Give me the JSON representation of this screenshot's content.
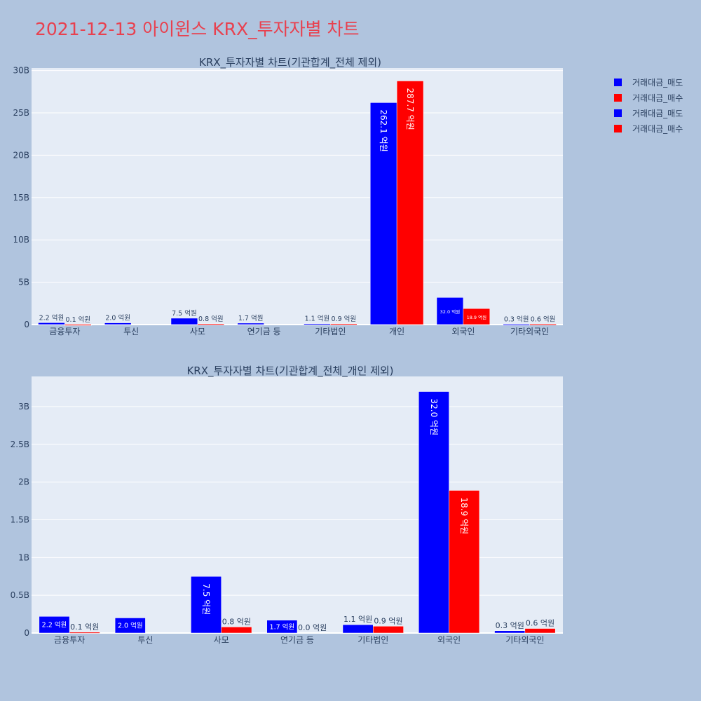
{
  "page_title": "2021-12-13 아이윈스 KRX_투자자별 차트",
  "colors": {
    "sell": "#0000ff",
    "buy": "#ff0000",
    "plot_bg": "#e5ecf6",
    "page_bg": "#b0c4de",
    "title": "#e8414f",
    "text": "#2a3f5f"
  },
  "legend": [
    {
      "label": "거래대금_매도",
      "color": "#0000ff"
    },
    {
      "label": "거래대금_매수",
      "color": "#ff0000"
    },
    {
      "label": "거래대금_매도",
      "color": "#0000ff"
    },
    {
      "label": "거래대금_매수",
      "color": "#ff0000"
    }
  ],
  "chart_data": [
    {
      "type": "bar",
      "title": "KRX_투자자별 차트(기관합계_전체 제외)",
      "categories": [
        "금융투자",
        "투신",
        "사모",
        "연기금 등",
        "기타법인",
        "개인",
        "외국인",
        "기타외국인"
      ],
      "series": [
        {
          "name": "거래대금_매도",
          "values": [
            220000000,
            200000000,
            750000000,
            170000000,
            110000000,
            26210000000,
            3200000000,
            30000000
          ],
          "labels": [
            "2.2 억원",
            "2.0 억원",
            "7.5 억원",
            "1.7 억원",
            "1.1 억원",
            "262.1 억원",
            "32.0 억원",
            "0.3 억원"
          ]
        },
        {
          "name": "거래대금_매수",
          "values": [
            10000000,
            0,
            80000000,
            0,
            90000000,
            28770000000,
            1890000000,
            60000000
          ],
          "labels": [
            "0.1 억원",
            "",
            "0.8 억원",
            "",
            "0.9 억원",
            "287.7 억원",
            "18.9 억원",
            "0.6 억원"
          ]
        }
      ],
      "yticks": [
        "0",
        "5B",
        "10B",
        "15B",
        "20B",
        "25B",
        "30B"
      ],
      "ylim": [
        0,
        30300000000
      ],
      "grid": true,
      "legend_position": "right"
    },
    {
      "type": "bar",
      "title": "KRX_투자자별 차트(기관합계_전체_개인 제외)",
      "categories": [
        "금융투자",
        "투신",
        "사모",
        "연기금 등",
        "기타법인",
        "외국인",
        "기타외국인"
      ],
      "series": [
        {
          "name": "거래대금_매도",
          "values": [
            220000000,
            200000000,
            750000000,
            170000000,
            110000000,
            3200000000,
            30000000
          ],
          "labels": [
            "2.2 억원",
            "2.0 억원",
            "7.5 억원",
            "1.7 억원",
            "1.1 억원",
            "32.0 억원",
            "0.3 억원"
          ]
        },
        {
          "name": "거래대금_매수",
          "values": [
            10000000,
            0,
            80000000,
            0,
            90000000,
            1890000000,
            60000000
          ],
          "labels": [
            "0.1 억원",
            "",
            "0.8 억원",
            "0.0 억원",
            "0.9 억원",
            "18.9 억원",
            "0.6 억원"
          ]
        }
      ],
      "yticks": [
        "0",
        "0.5B",
        "1B",
        "1.5B",
        "2B",
        "2.5B",
        "3B"
      ],
      "ylim": [
        0,
        3400000000
      ],
      "grid": true,
      "legend_position": "right"
    }
  ]
}
